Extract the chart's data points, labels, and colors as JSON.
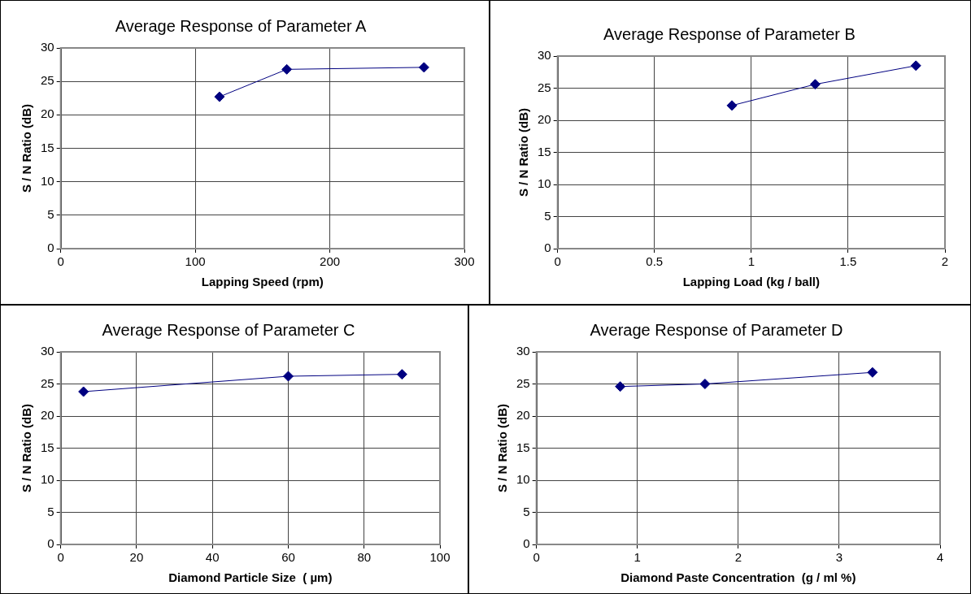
{
  "chart_data": [
    {
      "type": "line",
      "title": "Average Response of Parameter A",
      "xlabel": "Lapping Speed (rpm)",
      "ylabel": "S / N Ratio (dB)",
      "x": [
        118,
        168,
        270
      ],
      "series": [
        {
          "color": "#000080",
          "values": [
            22.7,
            26.8,
            27.1
          ]
        }
      ],
      "xlim": [
        0,
        300
      ],
      "xticks": [
        0,
        100,
        200,
        300
      ],
      "ylim": [
        0,
        30
      ],
      "yticks": [
        0,
        5,
        10,
        15,
        20,
        25,
        30
      ],
      "grid": true,
      "marker": "diamond",
      "line_style": "solid",
      "legend": false
    },
    {
      "type": "line",
      "title": "Average Response of Parameter B",
      "xlabel": "Lapping Load (kg / ball)",
      "ylabel": "S / N Ratio (dB)",
      "x": [
        0.9,
        1.33,
        1.85
      ],
      "series": [
        {
          "color": "#000080",
          "values": [
            22.3,
            25.6,
            28.5
          ]
        }
      ],
      "xlim": [
        0,
        2
      ],
      "xticks": [
        0,
        0.5,
        1,
        1.5,
        2
      ],
      "ylim": [
        0,
        30
      ],
      "yticks": [
        0,
        5,
        10,
        15,
        20,
        25,
        30
      ],
      "grid": true,
      "marker": "diamond",
      "line_style": "solid",
      "legend": false
    },
    {
      "type": "line",
      "title": "Average Response of Parameter C",
      "xlabel": "Diamond Particle Size  ( µm)",
      "ylabel": "S / N Ratio (dB)",
      "x": [
        6,
        60,
        90
      ],
      "series": [
        {
          "color": "#000080",
          "values": [
            23.8,
            26.2,
            26.5
          ]
        }
      ],
      "xlim": [
        0,
        100
      ],
      "xticks": [
        0,
        20,
        40,
        60,
        80,
        100
      ],
      "ylim": [
        0,
        30
      ],
      "yticks": [
        0,
        5,
        10,
        15,
        20,
        25,
        30
      ],
      "grid": true,
      "marker": "diamond",
      "line_style": "solid",
      "legend": false
    },
    {
      "type": "line",
      "title": "Average Response of Parameter D",
      "xlabel": "Diamond Paste Concentration  (g / ml %)",
      "ylabel": "S / N Ratio (dB)",
      "x": [
        0.83,
        1.67,
        3.33
      ],
      "series": [
        {
          "color": "#000080",
          "values": [
            24.6,
            25.0,
            26.8
          ]
        }
      ],
      "xlim": [
        0,
        4
      ],
      "xticks": [
        0,
        1,
        2,
        3,
        4
      ],
      "ylim": [
        0,
        30
      ],
      "yticks": [
        0,
        5,
        10,
        15,
        20,
        25,
        30
      ],
      "grid": true,
      "marker": "diamond",
      "line_style": "solid",
      "legend": false
    }
  ]
}
